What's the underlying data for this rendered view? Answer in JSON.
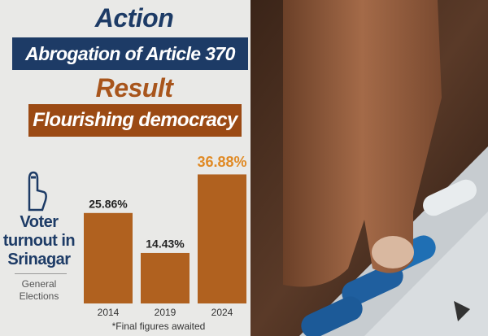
{
  "header": {
    "action": "Action",
    "action_text": "Abrogation of Article 370",
    "result": "Result",
    "result_text": "Flourishing democracy"
  },
  "chart_data": {
    "type": "bar",
    "title": "Voter turnout in Srinagar",
    "subtitle": "General Elections",
    "categories": [
      "2014",
      "2019",
      "2024"
    ],
    "values": [
      25.86,
      14.43,
      36.88
    ],
    "value_labels": [
      "25.86%",
      "14.43%",
      "36.88%"
    ],
    "color": "#b0611f",
    "note": "*Final figures awaited"
  }
}
